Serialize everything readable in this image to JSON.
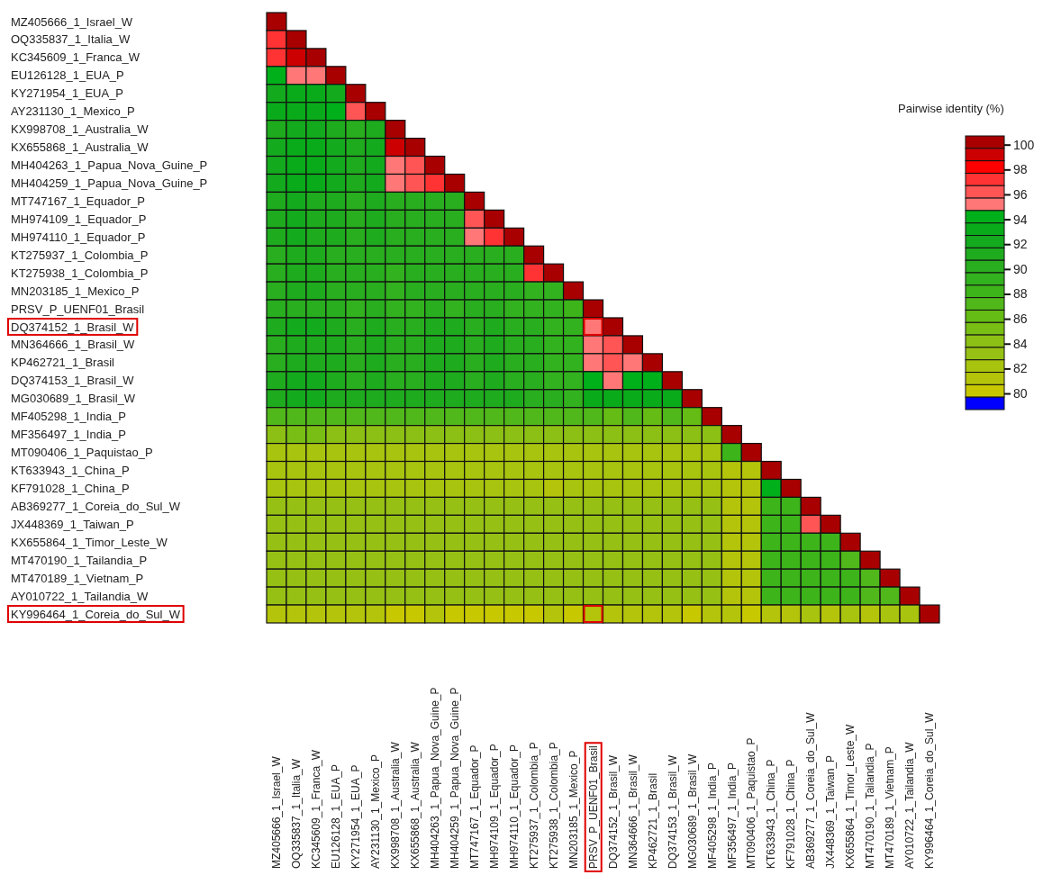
{
  "chart_data": {
    "type": "heatmap",
    "clabel": "Pairwise identity (%)",
    "categories": [
      "MZ405666_1_Israel_W",
      "OQ335837_1_Italia_W",
      "KC345609_1_Franca_W",
      "EU126128_1_EUA_P",
      "KY271954_1_EUA_P",
      "AY231130_1_Mexico_P",
      "KX998708_1_Australia_W",
      "KX655868_1_Australia_W",
      "MH404263_1_Papua_Nova_Guine_P",
      "MH404259_1_Papua_Nova_Guine_P",
      "MT747167_1_Equador_P",
      "MH974109_1_Equador_P",
      "MH974110_1_Equador_P",
      "KT275937_1_Colombia_P",
      "KT275938_1_Colombia_P",
      "MN203185_1_Mexico_P",
      "PRSV_P_UENF01_Brasil",
      "DQ374152_1_Brasil_W",
      "MN364666_1_Brasil_W",
      "KP462721_1_Brasil",
      "DQ374153_1_Brasil_W",
      "MG030689_1_Brasil_W",
      "MF405298_1_India_P",
      "MF356497_1_India_P",
      "MT090406_1_Paquistao_P",
      "KT633943_1_China_P",
      "KF791028_1_China_P",
      "AB369277_1_Coreia_do_Sul_W",
      "JX448369_1_Taiwan_P",
      "KX655864_1_Timor_Leste_W",
      "MT470190_1_Tailandia_P",
      "MT470189_1_Vietnam_P",
      "AY010722_1_Tailandia_W",
      "KY996464_1_Coreia_do_Sul_W"
    ],
    "y_categories": [
      "MZ405666_1_Israel_W",
      "OQ335837_1_Italia_W",
      "KC345609_1_Franca_W",
      "EU126128_1_EUA_P",
      "KY271954_1_EUA_P",
      "AY231130_1_Mexico_P",
      "KX998708_1_Australia_W",
      "KX655868_1_Australia_W",
      "MH404263_1_Papua_Nova_Guine_P",
      "MH404259_1_Papua_Nova_Guine_P",
      "MT747167_1_Equador_P",
      "MH974109_1_Equador_P",
      "MH974110_1_Equador_P",
      "KT275937_1_Colombia_P",
      "KT275938_1_Colombia_P",
      "MN203185_1_Mexico_P",
      "PRSV_P_UENF01_Brasil",
      "DQ374152_1_Brasil_W",
      "MN364666_1_Brasil_W",
      "KP462721_1_Brasil",
      "DQ374153_1_Brasil_W",
      "MG030689_1_Brasil_W",
      "MF405298_1_India_P",
      "MF356497_1_India_P",
      "MT090406_1_Paquistao_P",
      "KT633943_1_China_P",
      "KF791028_1_China_P",
      "AB369277_1_Coreia_do_Sul_W",
      "JX448369_1_Taiwan_P",
      "KX655864_1_Timor_Leste_W",
      "MT470190_1_Tailandia_P",
      "MT470189_1_Vietnam_P",
      "AY010722_1_Tailandia_W",
      "KY996464_1_Coreia_do_Sul_W"
    ],
    "clim": [
      78.7,
      100.7
    ],
    "cticks": [
      80,
      82,
      84,
      86,
      88,
      90,
      92,
      94,
      96,
      98,
      100
    ],
    "cells": [
      [
        100,
        null,
        null,
        null,
        null,
        null,
        null,
        null,
        null,
        null,
        null,
        null,
        null,
        null,
        null,
        null,
        null,
        null,
        null,
        null,
        null,
        null,
        null,
        null,
        null,
        null,
        null,
        null,
        null,
        null,
        null,
        null,
        null,
        null
      ],
      [
        97,
        100,
        null,
        null,
        null,
        null,
        null,
        null,
        null,
        null,
        null,
        null,
        null,
        null,
        null,
        null,
        null,
        null,
        null,
        null,
        null,
        null,
        null,
        null,
        null,
        null,
        null,
        null,
        null,
        null,
        null,
        null,
        null,
        null
      ],
      [
        97,
        99,
        100,
        null,
        null,
        null,
        null,
        null,
        null,
        null,
        null,
        null,
        null,
        null,
        null,
        null,
        null,
        null,
        null,
        null,
        null,
        null,
        null,
        null,
        null,
        null,
        null,
        null,
        null,
        null,
        null,
        null,
        null,
        null
      ],
      [
        94,
        95,
        95,
        100,
        null,
        null,
        null,
        null,
        null,
        null,
        null,
        null,
        null,
        null,
        null,
        null,
        null,
        null,
        null,
        null,
        null,
        null,
        null,
        null,
        null,
        null,
        null,
        null,
        null,
        null,
        null,
        null,
        null,
        null
      ],
      [
        92,
        93,
        93,
        92,
        100,
        null,
        null,
        null,
        null,
        null,
        null,
        null,
        null,
        null,
        null,
        null,
        null,
        null,
        null,
        null,
        null,
        null,
        null,
        null,
        null,
        null,
        null,
        null,
        null,
        null,
        null,
        null,
        null,
        null
      ],
      [
        93,
        93,
        93,
        94,
        96,
        100,
        null,
        null,
        null,
        null,
        null,
        null,
        null,
        null,
        null,
        null,
        null,
        null,
        null,
        null,
        null,
        null,
        null,
        null,
        null,
        null,
        null,
        null,
        null,
        null,
        null,
        null,
        null,
        null
      ],
      [
        91,
        92,
        92,
        91,
        90,
        91,
        100,
        null,
        null,
        null,
        null,
        null,
        null,
        null,
        null,
        null,
        null,
        null,
        null,
        null,
        null,
        null,
        null,
        null,
        null,
        null,
        null,
        null,
        null,
        null,
        null,
        null,
        null,
        null
      ],
      [
        92,
        93,
        93,
        92,
        91,
        92,
        99,
        100,
        null,
        null,
        null,
        null,
        null,
        null,
        null,
        null,
        null,
        null,
        null,
        null,
        null,
        null,
        null,
        null,
        null,
        null,
        null,
        null,
        null,
        null,
        null,
        null,
        null,
        null
      ],
      [
        92,
        93,
        93,
        92,
        91,
        92,
        95,
        96,
        100,
        null,
        null,
        null,
        null,
        null,
        null,
        null,
        null,
        null,
        null,
        null,
        null,
        null,
        null,
        null,
        null,
        null,
        null,
        null,
        null,
        null,
        null,
        null,
        null,
        null
      ],
      [
        92,
        93,
        93,
        92,
        91,
        92,
        95,
        96,
        97,
        100,
        null,
        null,
        null,
        null,
        null,
        null,
        null,
        null,
        null,
        null,
        null,
        null,
        null,
        null,
        null,
        null,
        null,
        null,
        null,
        null,
        null,
        null,
        null,
        null
      ],
      [
        91,
        92,
        91,
        91,
        90,
        91,
        90,
        90,
        90,
        90,
        100,
        null,
        null,
        null,
        null,
        null,
        null,
        null,
        null,
        null,
        null,
        null,
        null,
        null,
        null,
        null,
        null,
        null,
        null,
        null,
        null,
        null,
        null,
        null
      ],
      [
        91,
        92,
        91,
        91,
        90,
        91,
        90,
        90,
        90,
        90,
        96,
        100,
        null,
        null,
        null,
        null,
        null,
        null,
        null,
        null,
        null,
        null,
        null,
        null,
        null,
        null,
        null,
        null,
        null,
        null,
        null,
        null,
        null,
        null
      ],
      [
        91,
        92,
        91,
        91,
        90,
        91,
        90,
        90,
        90,
        90,
        95,
        97,
        100,
        null,
        null,
        null,
        null,
        null,
        null,
        null,
        null,
        null,
        null,
        null,
        null,
        null,
        null,
        null,
        null,
        null,
        null,
        null,
        null,
        null
      ],
      [
        90,
        91,
        91,
        90,
        90,
        90,
        90,
        90,
        90,
        90,
        90,
        90,
        90,
        100,
        null,
        null,
        null,
        null,
        null,
        null,
        null,
        null,
        null,
        null,
        null,
        null,
        null,
        null,
        null,
        null,
        null,
        null,
        null,
        null
      ],
      [
        90,
        91,
        91,
        90,
        90,
        90,
        89,
        90,
        90,
        90,
        90,
        90,
        90,
        97,
        100,
        null,
        null,
        null,
        null,
        null,
        null,
        null,
        null,
        null,
        null,
        null,
        null,
        null,
        null,
        null,
        null,
        null,
        null,
        null
      ],
      [
        90,
        91,
        91,
        90,
        90,
        90,
        89,
        90,
        90,
        90,
        90,
        90,
        90,
        89,
        89,
        100,
        null,
        null,
        null,
        null,
        null,
        null,
        null,
        null,
        null,
        null,
        null,
        null,
        null,
        null,
        null,
        null,
        null,
        null
      ],
      [
        90,
        90,
        90,
        90,
        89,
        90,
        89,
        89,
        90,
        89,
        90,
        90,
        89,
        89,
        89,
        88,
        100,
        null,
        null,
        null,
        null,
        null,
        null,
        null,
        null,
        null,
        null,
        null,
        null,
        null,
        null,
        null,
        null,
        null
      ],
      [
        91,
        92,
        92,
        91,
        90,
        91,
        90,
        90,
        91,
        91,
        90,
        91,
        90,
        90,
        89,
        89,
        95,
        100,
        null,
        null,
        null,
        null,
        null,
        null,
        null,
        null,
        null,
        null,
        null,
        null,
        null,
        null,
        null,
        null
      ],
      [
        90,
        91,
        91,
        91,
        90,
        91,
        90,
        90,
        91,
        91,
        90,
        91,
        90,
        90,
        89,
        89,
        95,
        96,
        100,
        null,
        null,
        null,
        null,
        null,
        null,
        null,
        null,
        null,
        null,
        null,
        null,
        null,
        null,
        null
      ],
      [
        90,
        91,
        91,
        91,
        90,
        91,
        90,
        90,
        91,
        91,
        90,
        91,
        90,
        90,
        89,
        89,
        95,
        96,
        95,
        100,
        null,
        null,
        null,
        null,
        null,
        null,
        null,
        null,
        null,
        null,
        null,
        null,
        null,
        null
      ],
      [
        91,
        92,
        92,
        91,
        90,
        91,
        90,
        90,
        91,
        91,
        90,
        91,
        90,
        90,
        89,
        89,
        94,
        95,
        94,
        94,
        100,
        null,
        null,
        null,
        null,
        null,
        null,
        null,
        null,
        null,
        null,
        null,
        null,
        null
      ],
      [
        91,
        92,
        92,
        91,
        91,
        91,
        91,
        91,
        91,
        91,
        91,
        91,
        91,
        90,
        90,
        89,
        93,
        93,
        93,
        93,
        93,
        100,
        null,
        null,
        null,
        null,
        null,
        null,
        null,
        null,
        null,
        null,
        null,
        null
      ],
      [
        87,
        87,
        87,
        87,
        87,
        87,
        87,
        87,
        87,
        87,
        87,
        87,
        87,
        87,
        87,
        87,
        87,
        86,
        87,
        86,
        87,
        86,
        100,
        null,
        null,
        null,
        null,
        null,
        null,
        null,
        null,
        null,
        null,
        null
      ],
      [
        84,
        85,
        85,
        84,
        84,
        84,
        84,
        84,
        84,
        84,
        84,
        84,
        84,
        84,
        84,
        84,
        84,
        84,
        84,
        84,
        84,
        84,
        84,
        100,
        null,
        null,
        null,
        null,
        null,
        null,
        null,
        null,
        null,
        null
      ],
      [
        82,
        82,
        82,
        82,
        82,
        82,
        82,
        82,
        82,
        82,
        82,
        82,
        82,
        82,
        82,
        82,
        82,
        82,
        82,
        82,
        82,
        82,
        82,
        88,
        100,
        null,
        null,
        null,
        null,
        null,
        null,
        null,
        null,
        null
      ],
      [
        82,
        82,
        82,
        82,
        82,
        82,
        82,
        82,
        82,
        82,
        82,
        82,
        82,
        82,
        82,
        82,
        82,
        82,
        82,
        82,
        82,
        82,
        82,
        81,
        81,
        100,
        null,
        null,
        null,
        null,
        null,
        null,
        null,
        null
      ],
      [
        82,
        82,
        82,
        82,
        82,
        82,
        82,
        82,
        82,
        82,
        82,
        82,
        82,
        82,
        81,
        82,
        82,
        82,
        82,
        82,
        82,
        82,
        82,
        81,
        81,
        94,
        100,
        null,
        null,
        null,
        null,
        null,
        null,
        null
      ],
      [
        83,
        83,
        83,
        83,
        83,
        83,
        83,
        83,
        83,
        83,
        83,
        83,
        83,
        83,
        83,
        83,
        83,
        83,
        83,
        83,
        83,
        83,
        83,
        81,
        81,
        88,
        88,
        100,
        null,
        null,
        null,
        null,
        null,
        null
      ],
      [
        83,
        83,
        83,
        83,
        83,
        83,
        83,
        83,
        83,
        83,
        83,
        83,
        83,
        83,
        83,
        83,
        83,
        83,
        83,
        83,
        83,
        83,
        83,
        81,
        81,
        88,
        88,
        96,
        100,
        null,
        null,
        null,
        null,
        null
      ],
      [
        83,
        83,
        83,
        83,
        83,
        83,
        83,
        83,
        83,
        83,
        83,
        83,
        83,
        83,
        83,
        83,
        83,
        83,
        83,
        83,
        83,
        83,
        83,
        81,
        81,
        88,
        88,
        88,
        88,
        100,
        null,
        null,
        null,
        null
      ],
      [
        83,
        83,
        83,
        83,
        83,
        83,
        83,
        83,
        83,
        83,
        83,
        83,
        83,
        83,
        83,
        83,
        83,
        83,
        83,
        83,
        83,
        83,
        83,
        81,
        81,
        88,
        88,
        88,
        88,
        87,
        100,
        null,
        null,
        null
      ],
      [
        83,
        83,
        83,
        83,
        83,
        83,
        83,
        83,
        83,
        83,
        83,
        83,
        83,
        83,
        83,
        83,
        83,
        83,
        83,
        83,
        83,
        83,
        83,
        81,
        81,
        88,
        88,
        88,
        88,
        88,
        87,
        100,
        null,
        null
      ],
      [
        83,
        83,
        83,
        83,
        83,
        83,
        83,
        83,
        83,
        83,
        83,
        83,
        83,
        83,
        83,
        83,
        83,
        83,
        83,
        83,
        83,
        83,
        83,
        81,
        81,
        88,
        88,
        88,
        88,
        88,
        87,
        87,
        100,
        null
      ],
      [
        81,
        81,
        81,
        81,
        81,
        81,
        80,
        80,
        81,
        80,
        80,
        80,
        80,
        80,
        81,
        80,
        81,
        81,
        81,
        81,
        81,
        80,
        81,
        81,
        80,
        81,
        81,
        82,
        81,
        82,
        81,
        82,
        82,
        100
      ]
    ]
  }
}
